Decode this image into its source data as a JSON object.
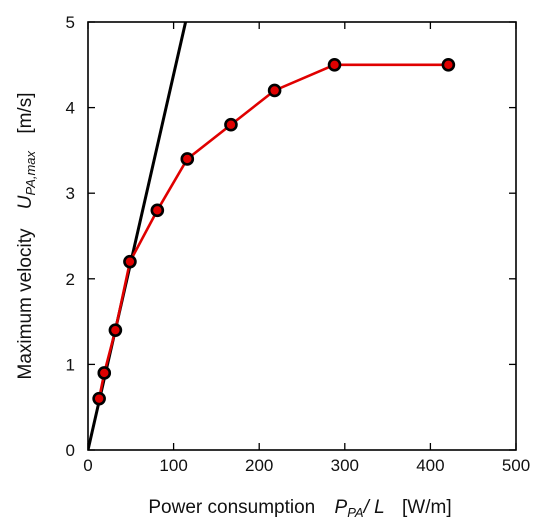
{
  "chart_data": {
    "type": "line",
    "xlabel_text": "Power consumption",
    "xlabel_symbol": "P",
    "xlabel_symbol_sub": "PA",
    "xlabel_symbol_rest": "/ L",
    "xlabel_unit": "[W/m]",
    "ylabel_text": "Maximum velocity",
    "ylabel_symbol": "U",
    "ylabel_symbol_sub": "PA,max",
    "ylabel_unit": "[m/s]",
    "xlim": [
      0,
      500
    ],
    "ylim": [
      0,
      5
    ],
    "xticks": [
      "0",
      "100",
      "200",
      "300",
      "400",
      "500"
    ],
    "yticks": [
      "0",
      "1",
      "2",
      "3",
      "4",
      "5"
    ],
    "grid": false,
    "series": [
      {
        "color": "#e00000",
        "marker": "circle",
        "x": [
          13,
          19,
          32,
          49,
          81,
          116,
          167,
          218,
          288,
          421
        ],
        "y": [
          0.6,
          0.9,
          1.4,
          2.2,
          2.8,
          3.4,
          3.8,
          4.2,
          4.5,
          4.5
        ]
      },
      {
        "color": "#000000",
        "x": [
          0,
          114
        ],
        "y": [
          0,
          5
        ]
      }
    ]
  }
}
